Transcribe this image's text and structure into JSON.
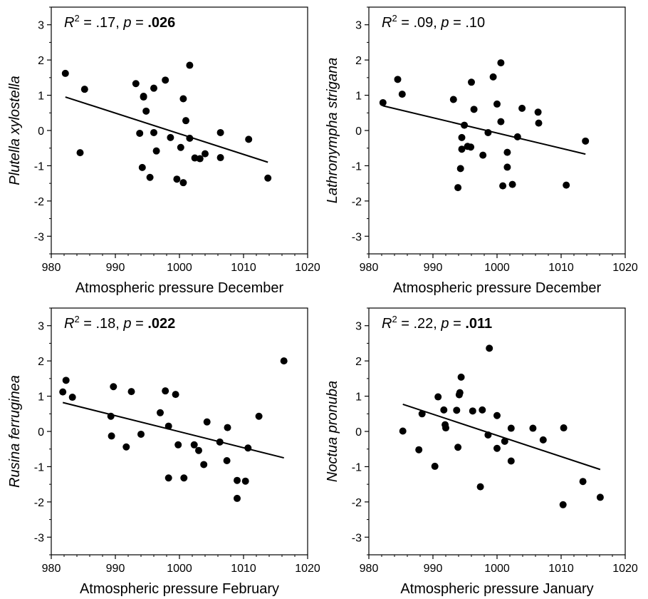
{
  "chart_data": [
    {
      "type": "scatter",
      "xlabel": "Atmospheric pressure December",
      "ylabel": "Plutella xylostella",
      "annotation": {
        "r2_label": "R",
        "r2_sup": "2",
        "r2_value": " = .17, ",
        "p_label": "p",
        "p_eq": " = ",
        "p_value": ".026",
        "p_bold": true
      },
      "xlim": [
        980,
        1020
      ],
      "ylim": [
        -3.5,
        3.5
      ],
      "xticks": [
        980,
        990,
        1000,
        1010,
        1020
      ],
      "yticks": [
        -3,
        -2,
        -1,
        0,
        1,
        2,
        3
      ],
      "points": [
        [
          982.2,
          1.62
        ],
        [
          984.5,
          -0.63
        ],
        [
          985.2,
          1.17
        ],
        [
          993.2,
          1.33
        ],
        [
          993.8,
          -0.08
        ],
        [
          994.2,
          -1.05
        ],
        [
          994.4,
          0.97
        ],
        [
          994.4,
          0.95
        ],
        [
          994.8,
          0.55
        ],
        [
          995.4,
          -1.33
        ],
        [
          996.0,
          1.2
        ],
        [
          996.0,
          -0.06
        ],
        [
          996.4,
          -0.58
        ],
        [
          997.8,
          1.43
        ],
        [
          998.6,
          -0.2
        ],
        [
          999.6,
          -1.38
        ],
        [
          1000.2,
          -0.48
        ],
        [
          1000.6,
          0.9
        ],
        [
          1000.6,
          -1.48
        ],
        [
          1001.0,
          0.28
        ],
        [
          1001.6,
          1.85
        ],
        [
          1001.6,
          -0.22
        ],
        [
          1002.4,
          -0.78
        ],
        [
          1003.2,
          -0.8
        ],
        [
          1004.0,
          -0.66
        ],
        [
          1006.4,
          -0.06
        ],
        [
          1006.4,
          -0.77
        ],
        [
          1010.8,
          -0.25
        ],
        [
          1013.8,
          -1.35
        ]
      ],
      "trendline": [
        [
          982.2,
          0.95
        ],
        [
          1013.8,
          -0.9
        ]
      ]
    },
    {
      "type": "scatter",
      "xlabel": "Atmospheric pressure December",
      "ylabel": "Lathronympha strigana",
      "annotation": {
        "r2_label": "R",
        "r2_sup": "2",
        "r2_value": " = .09, ",
        "p_label": "p",
        "p_eq": " = ",
        "p_value": ".10",
        "p_bold": false
      },
      "xlim": [
        980,
        1020
      ],
      "ylim": [
        -3.5,
        3.5
      ],
      "xticks": [
        980,
        990,
        1000,
        1010,
        1020
      ],
      "yticks": [
        -3,
        -2,
        -1,
        0,
        1,
        2,
        3
      ],
      "points": [
        [
          982.2,
          0.79
        ],
        [
          984.5,
          1.45
        ],
        [
          985.2,
          1.03
        ],
        [
          993.2,
          0.88
        ],
        [
          993.9,
          -1.62
        ],
        [
          994.3,
          -1.08
        ],
        [
          994.5,
          -0.2
        ],
        [
          994.5,
          -0.53
        ],
        [
          994.9,
          0.15
        ],
        [
          995.4,
          -0.45
        ],
        [
          995.9,
          -0.47
        ],
        [
          996.0,
          1.37
        ],
        [
          996.4,
          0.6
        ],
        [
          997.8,
          -0.7
        ],
        [
          998.6,
          -0.06
        ],
        [
          999.4,
          1.52
        ],
        [
          1000.0,
          0.75
        ],
        [
          1000.6,
          1.92
        ],
        [
          1000.6,
          0.25
        ],
        [
          1000.9,
          -1.57
        ],
        [
          1001.6,
          -0.62
        ],
        [
          1001.6,
          -1.04
        ],
        [
          1002.4,
          -1.53
        ],
        [
          1003.2,
          -0.18
        ],
        [
          1003.9,
          0.63
        ],
        [
          1006.4,
          0.52
        ],
        [
          1006.5,
          0.21
        ],
        [
          1010.8,
          -1.55
        ],
        [
          1013.8,
          -0.3
        ]
      ],
      "trendline": [
        [
          982.2,
          0.7
        ],
        [
          1013.8,
          -0.67
        ]
      ]
    },
    {
      "type": "scatter",
      "xlabel": "Atmospheric pressure February",
      "ylabel": "Rusina ferruginea",
      "annotation": {
        "r2_label": "R",
        "r2_sup": "2",
        "r2_value": " = .18, ",
        "p_label": "p",
        "p_eq": " = ",
        "p_value": ".022",
        "p_bold": true
      },
      "xlim": [
        980,
        1020
      ],
      "ylim": [
        -3.5,
        3.5
      ],
      "xticks": [
        980,
        990,
        1000,
        1010,
        1020
      ],
      "yticks": [
        -3,
        -2,
        -1,
        0,
        1,
        2,
        3
      ],
      "points": [
        [
          981.8,
          1.12
        ],
        [
          982.3,
          1.45
        ],
        [
          983.3,
          0.97
        ],
        [
          989.3,
          0.43
        ],
        [
          989.4,
          -0.13
        ],
        [
          989.7,
          1.27
        ],
        [
          991.7,
          -0.44
        ],
        [
          992.5,
          1.13
        ],
        [
          994.0,
          -0.08
        ],
        [
          997.0,
          0.53
        ],
        [
          997.8,
          1.15
        ],
        [
          998.3,
          -1.32
        ],
        [
          998.3,
          0.15
        ],
        [
          999.4,
          1.05
        ],
        [
          999.8,
          -0.38
        ],
        [
          1000.7,
          -1.32
        ],
        [
          1002.3,
          -0.38
        ],
        [
          1003.0,
          -0.54
        ],
        [
          1003.8,
          -0.94
        ],
        [
          1004.3,
          0.27
        ],
        [
          1006.3,
          -0.3
        ],
        [
          1007.4,
          -0.83
        ],
        [
          1007.5,
          0.11
        ],
        [
          1009.0,
          -1.39
        ],
        [
          1009.0,
          -1.9
        ],
        [
          1010.3,
          -1.41
        ],
        [
          1010.7,
          -0.47
        ],
        [
          1012.4,
          0.43
        ],
        [
          1016.3,
          2.0
        ]
      ],
      "trendline": [
        [
          981.8,
          0.82
        ],
        [
          1016.3,
          -0.75
        ]
      ]
    },
    {
      "type": "scatter",
      "xlabel": "Atmospheric pressure January",
      "ylabel": "Noctua pronuba",
      "annotation": {
        "r2_label": "R",
        "r2_sup": "2",
        "r2_value": " = .22, ",
        "p_label": "p",
        "p_eq": " = ",
        "p_value": ".011",
        "p_bold": true
      },
      "xlim": [
        980,
        1020
      ],
      "ylim": [
        -3.5,
        3.5
      ],
      "xticks": [
        980,
        990,
        1000,
        1010,
        1020
      ],
      "yticks": [
        -3,
        -2,
        -1,
        0,
        1,
        2,
        3
      ],
      "points": [
        [
          985.3,
          0.01
        ],
        [
          987.8,
          -0.52
        ],
        [
          988.3,
          0.5
        ],
        [
          990.3,
          -0.99
        ],
        [
          990.8,
          0.98
        ],
        [
          991.7,
          0.61
        ],
        [
          991.9,
          0.19
        ],
        [
          992.0,
          0.1
        ],
        [
          993.7,
          0.6
        ],
        [
          993.9,
          -0.45
        ],
        [
          994.1,
          1.04
        ],
        [
          994.2,
          1.1
        ],
        [
          994.4,
          1.54
        ],
        [
          996.2,
          0.58
        ],
        [
          997.4,
          -1.57
        ],
        [
          997.7,
          0.61
        ],
        [
          998.6,
          -0.1
        ],
        [
          998.8,
          2.36
        ],
        [
          1000.0,
          -0.48
        ],
        [
          1000.0,
          0.45
        ],
        [
          1001.2,
          -0.28
        ],
        [
          1002.2,
          0.09
        ],
        [
          1002.2,
          -0.84
        ],
        [
          1005.6,
          0.09
        ],
        [
          1007.2,
          -0.24
        ],
        [
          1010.3,
          -2.08
        ],
        [
          1010.4,
          0.1
        ],
        [
          1013.4,
          -1.42
        ],
        [
          1016.1,
          -1.87
        ]
      ],
      "trendline": [
        [
          985.3,
          0.77
        ],
        [
          1016.1,
          -1.08
        ]
      ]
    }
  ]
}
